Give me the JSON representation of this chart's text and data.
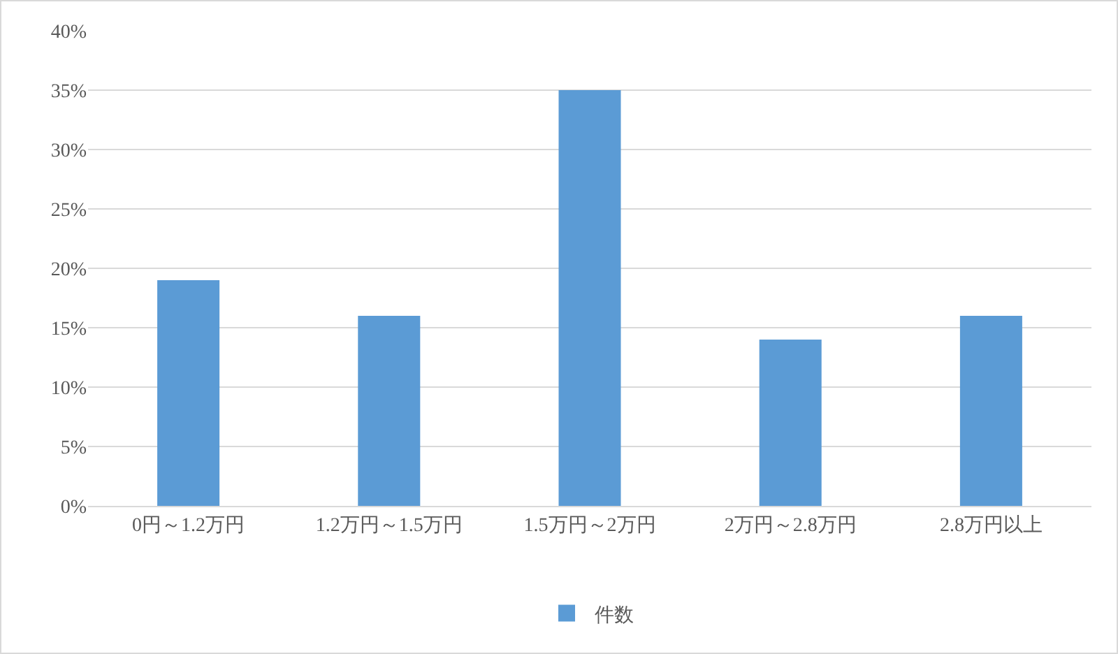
{
  "chart_data": {
    "type": "bar",
    "categories": [
      "0円～1.2万円",
      "1.2万円～1.5万円",
      "1.5万円～2万円",
      "2万円～2.8万円",
      "2.8万円以上"
    ],
    "series": [
      {
        "name": "件数",
        "color": "#5b9bd5",
        "values": [
          19,
          16,
          35,
          14,
          16
        ]
      }
    ],
    "ylim": [
      0,
      40
    ],
    "yticks": [
      {
        "value": 0,
        "label": "0%"
      },
      {
        "value": 5,
        "label": "5%"
      },
      {
        "value": 10,
        "label": "10%"
      },
      {
        "value": 15,
        "label": "15%"
      },
      {
        "value": 20,
        "label": "20%"
      },
      {
        "value": 25,
        "label": "25%"
      },
      {
        "value": 30,
        "label": "30%"
      },
      {
        "value": 35,
        "label": "35%"
      },
      {
        "value": 40,
        "label": "40%"
      }
    ],
    "grid": "y",
    "legend": "bottom"
  }
}
